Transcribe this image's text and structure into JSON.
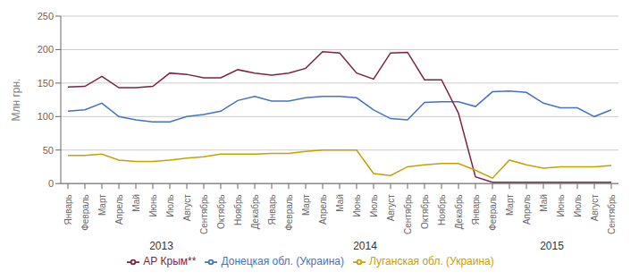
{
  "chart_data": {
    "type": "line",
    "ylabel": "Млн грн.",
    "categories": [
      "Январь",
      "Февраль",
      "Март",
      "Апрель",
      "Май",
      "Июнь",
      "Июль",
      "Август",
      "Сентябрь",
      "Октябрь",
      "Ноябрь",
      "Декабрь",
      "Январь",
      "Февраль",
      "Март",
      "Апрель",
      "Май",
      "Июнь",
      "Июль",
      "Август",
      "Сентябрь",
      "Октябрь",
      "Ноябрь",
      "Декабрь",
      "Январь",
      "Февраль",
      "Март",
      "Апрель",
      "Май",
      "Июнь",
      "Июль",
      "Август",
      "Сентябрь"
    ],
    "series": [
      {
        "name": "Донецкая обл. (Украина)",
        "color": "#4472c4",
        "values": [
          108,
          110,
          120,
          100,
          95,
          92,
          92,
          100,
          103,
          108,
          124,
          130,
          123,
          123,
          128,
          130,
          130,
          128,
          110,
          97,
          95,
          121,
          122,
          122,
          115,
          137,
          138,
          136,
          120,
          113,
          113,
          100,
          110
        ]
      },
      {
        "name": "АР Крым**",
        "color": "#7b2346",
        "values": [
          144,
          145,
          160,
          143,
          143,
          145,
          165,
          163,
          158,
          158,
          170,
          165,
          162,
          165,
          172,
          197,
          195,
          165,
          156,
          195,
          196,
          155,
          155,
          105,
          10,
          2,
          2,
          2,
          2,
          2,
          2,
          2,
          2
        ]
      },
      {
        "name": "Луганская обл. (Украина)",
        "color": "#c8a000",
        "values": [
          42,
          42,
          44,
          35,
          33,
          33,
          35,
          38,
          40,
          44,
          44,
          44,
          45,
          45,
          48,
          50,
          50,
          50,
          15,
          12,
          25,
          28,
          30,
          30,
          20,
          8,
          35,
          28,
          23,
          25,
          25,
          25,
          27
        ]
      }
    ],
    "annotations": [
      {
        "text": "2013",
        "x": 5.5
      },
      {
        "text": "2014",
        "x": 17.5
      },
      {
        "text": "2015",
        "x": 28.5
      }
    ],
    "ylim": [
      0,
      250
    ],
    "yticks": [
      0,
      50,
      100,
      150,
      200,
      250
    ],
    "grid": true,
    "legend": "bottom"
  }
}
